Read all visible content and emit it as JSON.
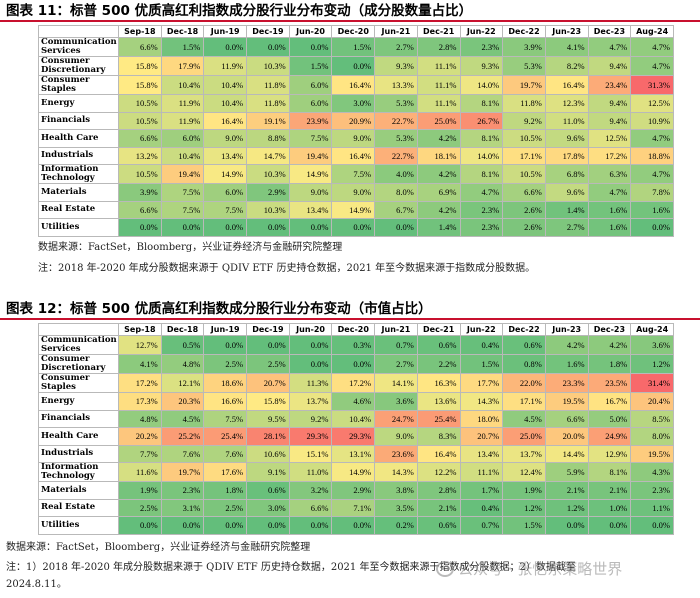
{
  "colors": {
    "title_rule": "#c8102e",
    "low": "#63be7b",
    "mid": "#ffeb84",
    "high": "#f8696b"
  },
  "fig1": {
    "title": "图表 11：标普 500 优质高红利指数成分股行业分布变动（成分股数量占比）",
    "source": "数据来源：FactSet，Bloomberg，兴业证券经济与金融研究院整理",
    "remark": "注：2018 年-2020 年成分股数据来源于 QDIV ETF 历史持仓数据，2021 年至今数据来源于指数成分股数据。"
  },
  "fig2": {
    "title": "图表 12：标普 500 优质高红利指数成分股行业分布变动（市值占比）",
    "source": "数据来源：FactSet，Bloomberg，兴业证券经济与金融研究院整理",
    "remark": "注：1）2018 年-2020 年成分股数据来源于 QDIV ETF 历史持仓数据，2021 年至今数据来源于指数成分股数据；2）数据截至",
    "remark_2": "2024.8.11。"
  },
  "watermark": "公众号 · 张忆东策略世界",
  "chart_data": [
    {
      "type": "heatmap",
      "title": "图表 11：标普 500 优质高红利指数成分股行业分布变动（成分股数量占比）",
      "columns": [
        "Sep-18",
        "Dec-18",
        "Jun-19",
        "Dec-19",
        "Jun-20",
        "Dec-20",
        "Jun-21",
        "Dec-21",
        "Jun-22",
        "Dec-22",
        "Jun-23",
        "Dec-23",
        "Aug-24"
      ],
      "rows": [
        {
          "label": "Communication Services",
          "values": [
            6.6,
            1.5,
            0.0,
            0.0,
            0.0,
            1.5,
            2.7,
            2.8,
            2.3,
            3.9,
            4.1,
            4.7,
            4.7
          ]
        },
        {
          "label": "Consumer Discretionary",
          "values": [
            15.8,
            17.9,
            11.9,
            10.3,
            1.5,
            0.0,
            9.3,
            11.1,
            9.3,
            5.3,
            8.2,
            9.4,
            4.7
          ]
        },
        {
          "label": "Consumer Staples",
          "values": [
            15.8,
            10.4,
            10.4,
            11.8,
            6.0,
            16.4,
            13.3,
            11.1,
            14.0,
            19.7,
            16.4,
            23.4,
            31.3
          ]
        },
        {
          "label": "Energy",
          "values": [
            10.5,
            11.9,
            10.4,
            11.8,
            6.0,
            3.0,
            5.3,
            11.1,
            8.1,
            11.8,
            12.3,
            9.4,
            12.5
          ]
        },
        {
          "label": "Financials",
          "values": [
            10.5,
            11.9,
            16.4,
            19.1,
            23.9,
            20.9,
            22.7,
            25.0,
            26.7,
            9.2,
            11.0,
            9.4,
            10.9
          ]
        },
        {
          "label": "Health Care",
          "values": [
            6.6,
            6.0,
            9.0,
            8.8,
            7.5,
            9.0,
            5.3,
            4.2,
            8.1,
            10.5,
            9.6,
            12.5,
            4.7
          ]
        },
        {
          "label": "Industrials",
          "values": [
            13.2,
            10.4,
            13.4,
            14.7,
            19.4,
            16.4,
            22.7,
            18.1,
            14.0,
            17.1,
            17.8,
            17.2,
            18.8
          ]
        },
        {
          "label": "Information Technology",
          "values": [
            10.5,
            19.4,
            14.9,
            10.3,
            14.9,
            7.5,
            4.0,
            4.2,
            8.1,
            10.5,
            6.8,
            6.3,
            4.7
          ]
        },
        {
          "label": "Materials",
          "values": [
            3.9,
            7.5,
            6.0,
            2.9,
            9.0,
            9.0,
            8.0,
            6.9,
            4.7,
            6.6,
            9.6,
            4.7,
            7.8
          ]
        },
        {
          "label": "Real Estate",
          "values": [
            6.6,
            7.5,
            7.5,
            10.3,
            13.4,
            14.9,
            6.7,
            4.2,
            2.3,
            2.6,
            1.4,
            1.6,
            1.6
          ]
        },
        {
          "label": "Utilities",
          "values": [
            0.0,
            0.0,
            0.0,
            0.0,
            0.0,
            0.0,
            0.0,
            1.4,
            2.3,
            2.6,
            2.7,
            1.6,
            0.0
          ]
        }
      ]
    },
    {
      "type": "heatmap",
      "title": "图表 12：标普 500 优质高红利指数成分股行业分布变动（市值占比）",
      "columns": [
        "Sep-18",
        "Dec-18",
        "Jun-19",
        "Dec-19",
        "Jun-20",
        "Dec-20",
        "Jun-21",
        "Dec-21",
        "Jun-22",
        "Dec-22",
        "Jun-23",
        "Dec-23",
        "Aug-24"
      ],
      "rows": [
        {
          "label": "Communication Services",
          "values": [
            12.7,
            0.5,
            0.0,
            0.0,
            0.0,
            0.3,
            0.7,
            0.6,
            0.4,
            0.6,
            4.2,
            4.2,
            3.6
          ]
        },
        {
          "label": "Consumer Discretionary",
          "values": [
            4.1,
            4.8,
            2.5,
            2.5,
            0.0,
            0.0,
            2.7,
            2.2,
            1.5,
            0.8,
            1.6,
            1.8,
            1.2
          ]
        },
        {
          "label": "Consumer Staples",
          "values": [
            17.2,
            12.1,
            18.6,
            20.7,
            11.3,
            17.2,
            14.1,
            16.3,
            17.7,
            22.0,
            23.3,
            23.5,
            31.4
          ]
        },
        {
          "label": "Energy",
          "values": [
            17.3,
            20.3,
            16.6,
            15.8,
            13.7,
            4.6,
            3.6,
            13.6,
            14.3,
            17.1,
            19.5,
            16.7,
            20.4
          ]
        },
        {
          "label": "Financials",
          "values": [
            4.8,
            4.5,
            7.5,
            9.5,
            9.2,
            10.4,
            24.7,
            25.4,
            18.0,
            4.5,
            6.6,
            5.0,
            8.5
          ]
        },
        {
          "label": "Health Care",
          "values": [
            20.2,
            25.2,
            25.4,
            28.1,
            29.3,
            29.3,
            9.0,
            8.3,
            20.7,
            25.0,
            20.0,
            24.9,
            8.0
          ]
        },
        {
          "label": "Industrials",
          "values": [
            7.7,
            7.6,
            7.6,
            10.6,
            15.1,
            13.1,
            23.6,
            16.4,
            13.4,
            13.7,
            14.4,
            12.9,
            19.5
          ]
        },
        {
          "label": "Information Technology",
          "values": [
            11.6,
            19.7,
            17.6,
            9.1,
            11.0,
            14.9,
            14.3,
            12.2,
            11.1,
            12.4,
            5.9,
            8.1,
            4.3
          ]
        },
        {
          "label": "Materials",
          "values": [
            1.9,
            2.3,
            1.8,
            0.6,
            3.2,
            2.9,
            3.8,
            2.8,
            1.7,
            1.9,
            2.1,
            2.1,
            2.3
          ]
        },
        {
          "label": "Real Estate",
          "values": [
            2.5,
            3.1,
            2.5,
            3.0,
            6.6,
            7.1,
            3.5,
            2.1,
            0.4,
            1.2,
            1.2,
            1.0,
            1.1
          ]
        },
        {
          "label": "Utilities",
          "values": [
            0.0,
            0.0,
            0.0,
            0.0,
            0.0,
            0.0,
            0.2,
            0.6,
            0.7,
            1.5,
            0.0,
            0.0,
            0.0
          ]
        }
      ]
    }
  ]
}
